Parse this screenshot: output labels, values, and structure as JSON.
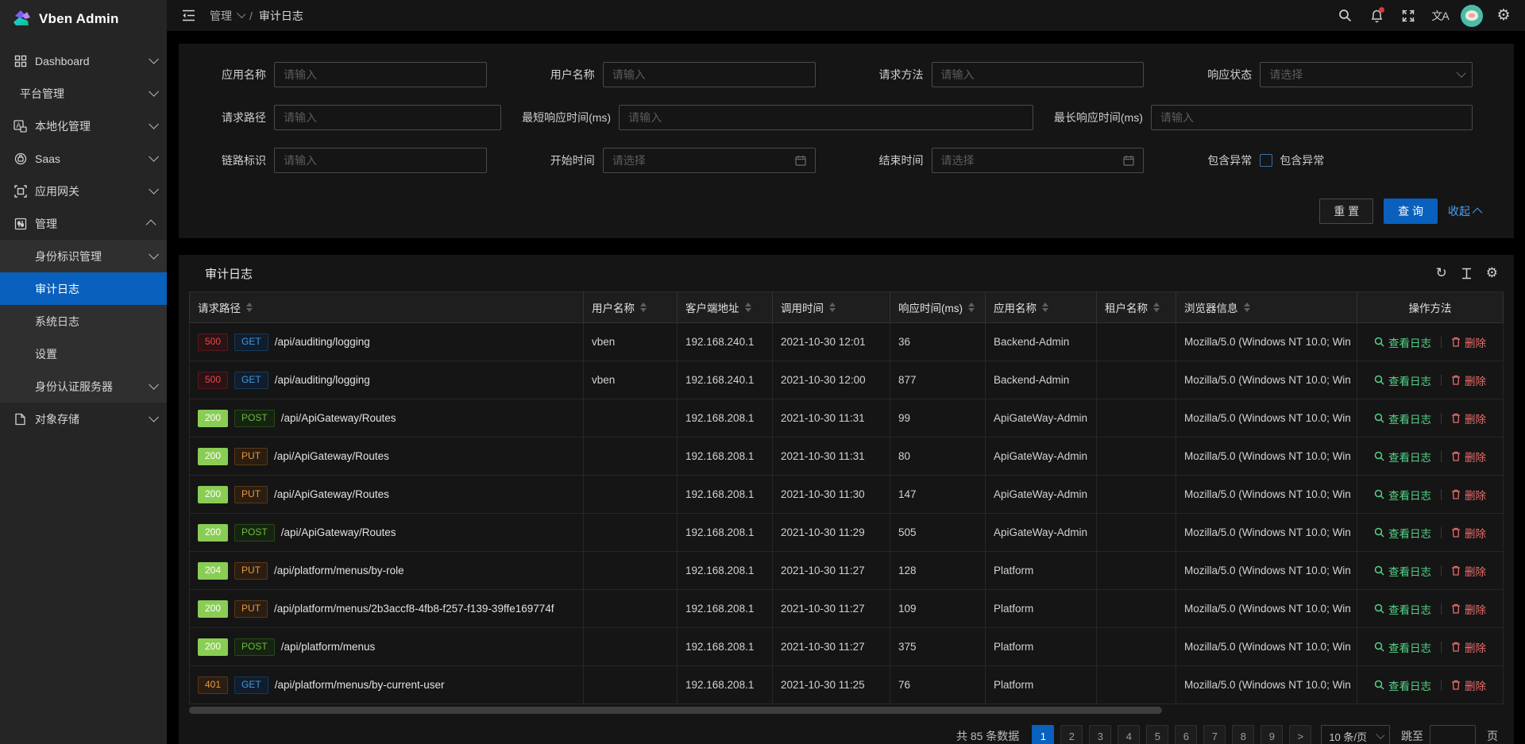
{
  "colors": {
    "primary": "#0960bd",
    "link": "#4f9ef8",
    "status_error": "#e84749",
    "status_success_bg": "#8acd55",
    "status_warn": "#e89a3c",
    "method_get": "#3c9ae8",
    "method_post": "#6abe39",
    "method_put": "#e89a3c",
    "action_view": "#55d187",
    "action_delete": "#e96c6c",
    "sidebar_bg": "#252525",
    "card_bg": "#151515"
  },
  "app": {
    "title": "Vben Admin"
  },
  "topbar": {
    "breadcrumb": [
      {
        "label": "管理",
        "chevron": true
      },
      {
        "label": "审计日志",
        "chevron": false
      }
    ],
    "separator": "/",
    "right_icons": [
      "search-icon",
      "notification-bell-icon",
      "fullscreen-icon",
      "locale-icon",
      "avatar",
      "settings-gear-icon"
    ],
    "locale_glyph": "文A"
  },
  "sidebar": {
    "items": [
      {
        "label": "Dashboard",
        "icon": "dashboard-icon",
        "type": "top",
        "chevron": "down"
      },
      {
        "label": "平台管理",
        "icon": null,
        "type": "top",
        "chevron": "down"
      },
      {
        "label": "本地化管理",
        "icon": "locale-manage-icon",
        "type": "top",
        "chevron": "down"
      },
      {
        "label": "Saas",
        "icon": "saas-icon",
        "type": "top",
        "chevron": "down"
      },
      {
        "label": "应用网关",
        "icon": "gateway-icon",
        "type": "top",
        "chevron": "down"
      },
      {
        "label": "管理",
        "icon": "manage-icon",
        "type": "top",
        "chevron": "up",
        "open": true
      },
      {
        "label": "身份标识管理",
        "type": "sub",
        "chevron": "down"
      },
      {
        "label": "审计日志",
        "type": "sub",
        "active": true
      },
      {
        "label": "系统日志",
        "type": "sub"
      },
      {
        "label": "设置",
        "type": "sub"
      },
      {
        "label": "身份认证服务器",
        "type": "sub",
        "chevron": "down"
      },
      {
        "label": "对象存储",
        "icon": "storage-icon",
        "type": "top",
        "chevron": "down"
      }
    ]
  },
  "filter": {
    "rows": [
      {
        "cols": "c4",
        "fields": [
          {
            "label": "应用名称",
            "type": "input",
            "placeholder": "请输入"
          },
          {
            "label": "用户名称",
            "type": "input",
            "placeholder": "请输入"
          },
          {
            "label": "请求方法",
            "type": "input",
            "placeholder": "请输入"
          },
          {
            "label": "响应状态",
            "type": "select",
            "placeholder": "请选择"
          }
        ]
      },
      {
        "cols": "c3",
        "fields": [
          {
            "label": "请求路径",
            "type": "input",
            "placeholder": "请输入"
          },
          {
            "label": "最短响应时间(ms)",
            "type": "input",
            "placeholder": "请输入"
          },
          {
            "label": "最长响应时间(ms)",
            "type": "input",
            "placeholder": "请输入"
          }
        ]
      },
      {
        "cols": "c4",
        "fields": [
          {
            "label": "链路标识",
            "type": "input",
            "placeholder": "请输入"
          },
          {
            "label": "开始时间",
            "type": "date",
            "placeholder": "请选择"
          },
          {
            "label": "结束时间",
            "type": "date",
            "placeholder": "请选择"
          },
          {
            "label": "包含异常",
            "type": "checkbox",
            "text": "包含异常",
            "checked": false
          }
        ]
      }
    ],
    "reset_label": "重 置",
    "search_label": "查 询",
    "collapse_label": "收起"
  },
  "table": {
    "title": "审计日志",
    "toolbar_icons": [
      "refresh-icon",
      "row-height-icon",
      "column-settings-icon"
    ],
    "columns": [
      {
        "label": "请求路径",
        "sortable": true
      },
      {
        "label": "用户名称",
        "sortable": true
      },
      {
        "label": "客户端地址",
        "sortable": true
      },
      {
        "label": "调用时间",
        "sortable": true
      },
      {
        "label": "响应时间(ms)",
        "sortable": true
      },
      {
        "label": "应用名称",
        "sortable": true
      },
      {
        "label": "租户名称",
        "sortable": true
      },
      {
        "label": "浏览器信息",
        "sortable": true
      },
      {
        "label": "操作方法",
        "sortable": false
      }
    ],
    "actions": {
      "view": "查看日志",
      "delete": "删除"
    },
    "rows": [
      {
        "status": "500",
        "status_type": "error",
        "method": "GET",
        "method_type": "get",
        "path": "/api/auditing/logging",
        "user": "vben",
        "client": "192.168.240.1",
        "time": "2021-10-30 12:01",
        "duration": "36",
        "app": "Backend-Admin",
        "tenant": "",
        "browser": "Mozilla/5.0 (Windows NT 10.0; Win"
      },
      {
        "status": "500",
        "status_type": "error",
        "method": "GET",
        "method_type": "get",
        "path": "/api/auditing/logging",
        "user": "vben",
        "client": "192.168.240.1",
        "time": "2021-10-30 12:00",
        "duration": "877",
        "app": "Backend-Admin",
        "tenant": "",
        "browser": "Mozilla/5.0 (Windows NT 10.0; Win"
      },
      {
        "status": "200",
        "status_type": "success",
        "method": "POST",
        "method_type": "post",
        "path": "/api/ApiGateway/Routes",
        "user": "",
        "client": "192.168.208.1",
        "time": "2021-10-30 11:31",
        "duration": "99",
        "app": "ApiGateWay-Admin",
        "tenant": "",
        "browser": "Mozilla/5.0 (Windows NT 10.0; Win"
      },
      {
        "status": "200",
        "status_type": "success",
        "method": "PUT",
        "method_type": "put",
        "path": "/api/ApiGateway/Routes",
        "user": "",
        "client": "192.168.208.1",
        "time": "2021-10-30 11:31",
        "duration": "80",
        "app": "ApiGateWay-Admin",
        "tenant": "",
        "browser": "Mozilla/5.0 (Windows NT 10.0; Win"
      },
      {
        "status": "200",
        "status_type": "success",
        "method": "PUT",
        "method_type": "put",
        "path": "/api/ApiGateway/Routes",
        "user": "",
        "client": "192.168.208.1",
        "time": "2021-10-30 11:30",
        "duration": "147",
        "app": "ApiGateWay-Admin",
        "tenant": "",
        "browser": "Mozilla/5.0 (Windows NT 10.0; Win"
      },
      {
        "status": "200",
        "status_type": "success",
        "method": "POST",
        "method_type": "post",
        "path": "/api/ApiGateway/Routes",
        "user": "",
        "client": "192.168.208.1",
        "time": "2021-10-30 11:29",
        "duration": "505",
        "app": "ApiGateWay-Admin",
        "tenant": "",
        "browser": "Mozilla/5.0 (Windows NT 10.0; Win"
      },
      {
        "status": "204",
        "status_type": "success",
        "method": "PUT",
        "method_type": "put",
        "path": "/api/platform/menus/by-role",
        "user": "",
        "client": "192.168.208.1",
        "time": "2021-10-30 11:27",
        "duration": "128",
        "app": "Platform",
        "tenant": "",
        "browser": "Mozilla/5.0 (Windows NT 10.0; Win"
      },
      {
        "status": "200",
        "status_type": "success",
        "method": "PUT",
        "method_type": "put",
        "path": "/api/platform/menus/2b3accf8-4fb8-f257-f139-39ffe169774f",
        "user": "",
        "client": "192.168.208.1",
        "time": "2021-10-30 11:27",
        "duration": "109",
        "app": "Platform",
        "tenant": "",
        "browser": "Mozilla/5.0 (Windows NT 10.0; Win"
      },
      {
        "status": "200",
        "status_type": "success",
        "method": "POST",
        "method_type": "post",
        "path": "/api/platform/menus",
        "user": "",
        "client": "192.168.208.1",
        "time": "2021-10-30 11:27",
        "duration": "375",
        "app": "Platform",
        "tenant": "",
        "browser": "Mozilla/5.0 (Windows NT 10.0; Win"
      },
      {
        "status": "401",
        "status_type": "warn",
        "method": "GET",
        "method_type": "get",
        "path": "/api/platform/menus/by-current-user",
        "user": "",
        "client": "192.168.208.1",
        "time": "2021-10-30 11:25",
        "duration": "76",
        "app": "Platform",
        "tenant": "",
        "browser": "Mozilla/5.0 (Windows NT 10.0; Win"
      }
    ]
  },
  "pagination": {
    "total": "共 85 条数据",
    "pages": [
      "1",
      "2",
      "3",
      "4",
      "5",
      "6",
      "7",
      "8",
      "9"
    ],
    "active_page": "1",
    "next": ">",
    "page_size": "10 条/页",
    "jump_label": "跳至",
    "jump_value": "",
    "jump_suffix": "页"
  }
}
